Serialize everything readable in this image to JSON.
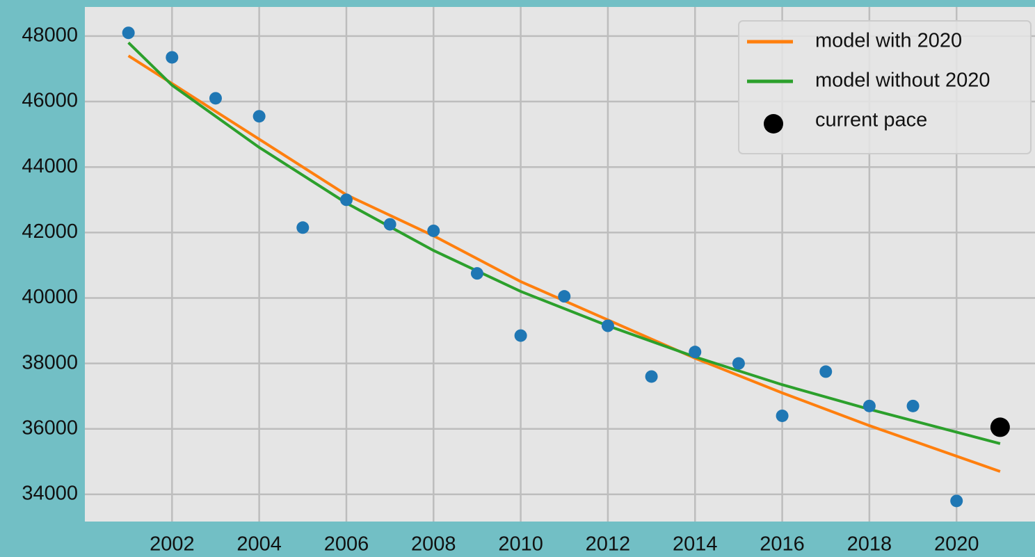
{
  "chart_data": {
    "type": "line",
    "xlim": [
      2000,
      2021.8
    ],
    "xticks": [
      2002,
      2004,
      2006,
      2008,
      2010,
      2012,
      2014,
      2016,
      2018,
      2020
    ],
    "ylim": [
      33170,
      48890
    ],
    "yticks": [
      34000,
      36000,
      38000,
      40000,
      42000,
      44000,
      46000,
      48000
    ],
    "grid": true,
    "legend": "upper right",
    "series": [
      {
        "style": "scatter",
        "color": "#1f77b4",
        "x": [
          2001,
          2002,
          2003,
          2004,
          2005,
          2006,
          2007,
          2008,
          2009,
          2010,
          2011,
          2012,
          2013,
          2014,
          2015,
          2016,
          2017,
          2018,
          2019,
          2020
        ],
        "values": [
          48100,
          47350,
          46100,
          45550,
          42150,
          43000,
          42250,
          42050,
          40750,
          38850,
          40050,
          39150,
          37600,
          38350,
          38000,
          36400,
          37750,
          36700,
          36700,
          33800
        ]
      },
      {
        "name": "model with 2020",
        "style": "line",
        "color": "#ff7f0e",
        "x": [
          2001,
          2004,
          2006,
          2008,
          2010,
          2012,
          2014,
          2016,
          2018,
          2021
        ],
        "values": [
          47400,
          44850,
          43150,
          41900,
          40500,
          39330,
          38160,
          37100,
          36100,
          34700
        ]
      },
      {
        "name": "model without 2020",
        "style": "line",
        "color": "#2ca02c",
        "x": [
          2001,
          2002,
          2004,
          2006,
          2008,
          2010,
          2012,
          2014,
          2016,
          2018,
          2021
        ],
        "values": [
          47800,
          46500,
          44600,
          42900,
          41450,
          40200,
          39150,
          38200,
          37350,
          36600,
          35550
        ]
      },
      {
        "name": "current pace",
        "style": "scatter",
        "color": "#000000",
        "x": [
          2021
        ],
        "values": [
          36050
        ]
      }
    ]
  }
}
